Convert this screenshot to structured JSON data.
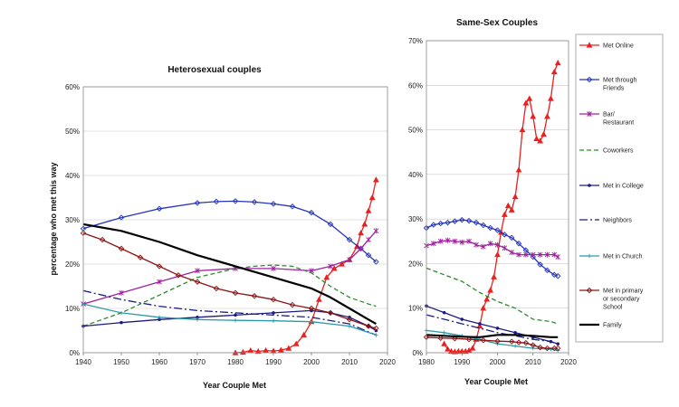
{
  "chart_data": [
    {
      "type": "line",
      "title": "Heterosexual couples",
      "xlabel": "Year Couple Met",
      "ylabel": "percentage who met this way",
      "xlim": [
        1940,
        2020
      ],
      "ylim": [
        0,
        60
      ],
      "xticks": [
        1940,
        1950,
        1960,
        1970,
        1980,
        1990,
        2000,
        2010,
        2020
      ],
      "yticks": [
        "0%",
        "10%",
        "20%",
        "30%",
        "40%",
        "50%",
        "60%"
      ],
      "series": [
        {
          "name": "Met Online",
          "color": "#e8201e",
          "marker": "triangle",
          "dash": "none",
          "x": [
            1980,
            1982,
            1984,
            1986,
            1988,
            1990,
            1992,
            1994,
            1996,
            1998,
            2000,
            2002,
            2004,
            2006,
            2008,
            2010,
            2012,
            2013,
            2014,
            2015,
            2016,
            2017
          ],
          "y": [
            0,
            0.1,
            0.5,
            0.3,
            0.5,
            0.4,
            0.6,
            1,
            2,
            4,
            7,
            12,
            17,
            19,
            20,
            21,
            24,
            27,
            29,
            32,
            35,
            39
          ]
        },
        {
          "name": "Met through Friends",
          "color": "#2434b8",
          "marker": "diamond",
          "dash": "none",
          "x": [
            1940,
            1950,
            1960,
            1970,
            1975,
            1980,
            1985,
            1990,
            1995,
            2000,
            2005,
            2010,
            2013,
            2015,
            2017
          ],
          "y": [
            28,
            30.5,
            32.5,
            33.8,
            34.1,
            34.2,
            34,
            33.6,
            33,
            31.6,
            29,
            25.5,
            23.5,
            22,
            20.5
          ]
        },
        {
          "name": "Bar/ Restaurant",
          "color": "#a020a0",
          "marker": "star",
          "dash": "none",
          "x": [
            1940,
            1950,
            1960,
            1970,
            1980,
            1990,
            2000,
            2005,
            2010,
            2013,
            2015,
            2017
          ],
          "y": [
            11,
            13.5,
            16,
            18.5,
            19,
            19,
            18.5,
            19.5,
            21,
            23.5,
            25.5,
            27.5
          ]
        },
        {
          "name": "Coworkers",
          "color": "#2e8a2e",
          "marker": "none",
          "dash": "5,3",
          "x": [
            1940,
            1950,
            1960,
            1970,
            1980,
            1985,
            1990,
            1995,
            2000,
            2005,
            2010,
            2015,
            2017
          ],
          "y": [
            6,
            9,
            13,
            17,
            19,
            19.5,
            19.8,
            19.5,
            18,
            15,
            12.5,
            11,
            10.5
          ]
        },
        {
          "name": "Met in College",
          "color": "#1c1c80",
          "marker": "dot",
          "dash": "none",
          "x": [
            1940,
            1950,
            1960,
            1970,
            1980,
            1990,
            2000,
            2005,
            2010,
            2015,
            2017
          ],
          "y": [
            6,
            6.8,
            7.5,
            8,
            8.5,
            9,
            9.5,
            9,
            8,
            6,
            5
          ]
        },
        {
          "name": "Neighbors",
          "color": "#1c1c80",
          "marker": "none",
          "dash": "9,3,2,3",
          "x": [
            1940,
            1950,
            1960,
            1970,
            1980,
            1990,
            2000,
            2010,
            2017
          ],
          "y": [
            14,
            12,
            10.5,
            9.5,
            9,
            8.5,
            8,
            6.5,
            4
          ]
        },
        {
          "name": "Met in Church",
          "color": "#2a9aa8",
          "marker": "plus",
          "dash": "none",
          "x": [
            1940,
            1950,
            1960,
            1970,
            1980,
            1990,
            2000,
            2010,
            2017
          ],
          "y": [
            11,
            9,
            8,
            7.5,
            7.3,
            7.2,
            7,
            6,
            4
          ]
        },
        {
          "name": "Met in primary or secondary School",
          "color": "#8b1414",
          "marker": "diamond",
          "dash": "none",
          "x": [
            1940,
            1945,
            1950,
            1955,
            1960,
            1965,
            1970,
            1975,
            1980,
            1985,
            1990,
            1995,
            2000,
            2005,
            2010,
            2015,
            2017
          ],
          "y": [
            27,
            25.5,
            23.5,
            21.5,
            19.5,
            17.5,
            16,
            14.5,
            13.5,
            12.8,
            12,
            10.8,
            10,
            9,
            7.5,
            6,
            5.5
          ]
        },
        {
          "name": "Family",
          "color": "#000000",
          "marker": "none",
          "dash": "none",
          "width": 2.2,
          "x": [
            1940,
            1950,
            1960,
            1970,
            1980,
            1990,
            2000,
            2005,
            2010,
            2015,
            2017
          ],
          "y": [
            29,
            27.5,
            25,
            22,
            19.5,
            17,
            14.5,
            12.5,
            10,
            7.5,
            6.5
          ]
        }
      ]
    },
    {
      "type": "line",
      "title": "Same-Sex Couples",
      "xlabel": "Year Couple Met",
      "ylabel": "",
      "xlim": [
        1980,
        2020
      ],
      "ylim": [
        0,
        70
      ],
      "xticks": [
        1980,
        1990,
        2000,
        2010,
        2020
      ],
      "yticks": [
        "0%",
        "10%",
        "20%",
        "30%",
        "40%",
        "50%",
        "60%",
        "70%"
      ],
      "series": [
        {
          "name": "Met Online",
          "color": "#e8201e",
          "marker": "triangle",
          "dash": "none",
          "x": [
            1985,
            1986,
            1987,
            1988,
            1989,
            1990,
            1991,
            1992,
            1993,
            1994,
            1995,
            1996,
            1997,
            1998,
            1999,
            2000,
            2001,
            2002,
            2003,
            2004,
            2005,
            2006,
            2007,
            2008,
            2009,
            2010,
            2011,
            2012,
            2013,
            2014,
            2015,
            2016,
            2017
          ],
          "y": [
            2,
            0.8,
            0.3,
            0.2,
            0.3,
            0.3,
            0.3,
            0.5,
            1,
            3,
            6,
            10,
            12,
            14,
            17,
            22,
            27,
            31,
            33,
            32,
            35,
            41,
            50,
            56,
            57,
            53,
            48,
            47.5,
            49,
            53,
            57,
            63,
            65
          ]
        },
        {
          "name": "Met through Friends",
          "color": "#2434b8",
          "marker": "diamond",
          "dash": "none",
          "x": [
            1980,
            1982,
            1984,
            1986,
            1988,
            1990,
            1992,
            1994,
            1996,
            1998,
            2000,
            2002,
            2004,
            2006,
            2008,
            2010,
            2012,
            2014,
            2016,
            2017
          ],
          "y": [
            28,
            28.7,
            29,
            29.2,
            29.5,
            29.8,
            29.6,
            29.2,
            28.6,
            28,
            27.5,
            26.5,
            25.8,
            24.5,
            23,
            21.5,
            19.8,
            18.5,
            17.5,
            17.2
          ]
        },
        {
          "name": "Bar/ Restaurant",
          "color": "#a020a0",
          "marker": "star",
          "dash": "none",
          "x": [
            1980,
            1982,
            1984,
            1986,
            1988,
            1990,
            1992,
            1994,
            1996,
            1998,
            2000,
            2002,
            2004,
            2006,
            2008,
            2010,
            2012,
            2014,
            2016,
            2017
          ],
          "y": [
            24,
            24.5,
            25,
            25.2,
            25,
            24.8,
            25,
            24.2,
            23.8,
            24.5,
            24.2,
            23.5,
            22.5,
            22,
            22,
            22,
            22,
            22,
            22,
            21.5
          ]
        },
        {
          "name": "Coworkers",
          "color": "#2e8a2e",
          "marker": "none",
          "dash": "5,3",
          "x": [
            1980,
            1985,
            1990,
            1995,
            2000,
            2005,
            2010,
            2015,
            2017
          ],
          "y": [
            19,
            17.5,
            16,
            13.5,
            11.5,
            10,
            7.5,
            7,
            6.5
          ]
        },
        {
          "name": "Met in College",
          "color": "#1c1c80",
          "marker": "dot",
          "dash": "none",
          "x": [
            1980,
            1985,
            1990,
            1995,
            2000,
            2005,
            2010,
            2015,
            2017
          ],
          "y": [
            10.5,
            9,
            7.5,
            6.5,
            5.5,
            4.5,
            3.5,
            2.5,
            2
          ]
        },
        {
          "name": "Neighbors",
          "color": "#1c1c80",
          "marker": "none",
          "dash": "9,3,2,3",
          "x": [
            1980,
            1985,
            1990,
            1995,
            2000,
            2005,
            2010,
            2015,
            2017
          ],
          "y": [
            8.5,
            7.5,
            6.5,
            5.5,
            4.5,
            3.8,
            3,
            2.5,
            2
          ]
        },
        {
          "name": "Met in Church",
          "color": "#2a9aa8",
          "marker": "plus",
          "dash": "none",
          "x": [
            1980,
            1985,
            1990,
            1995,
            2000,
            2005,
            2010,
            2015,
            2017
          ],
          "y": [
            5,
            4.5,
            3.8,
            3,
            2,
            1.5,
            1,
            0.8,
            0.5
          ]
        },
        {
          "name": "Met in primary or secondary School",
          "color": "#8b1414",
          "marker": "diamond",
          "dash": "none",
          "x": [
            1980,
            1984,
            1988,
            1992,
            1996,
            2000,
            2004,
            2006,
            2008,
            2010,
            2012,
            2014,
            2016,
            2017
          ],
          "y": [
            3.5,
            3.3,
            3.2,
            3,
            2.8,
            2.6,
            2.5,
            2.3,
            2.2,
            1.7,
            1.2,
            1,
            1,
            1
          ]
        },
        {
          "name": "Family",
          "color": "#000000",
          "marker": "none",
          "dash": "none",
          "width": 2.2,
          "x": [
            1980,
            1985,
            1990,
            1995,
            2000,
            2005,
            2010,
            2015,
            2017
          ],
          "y": [
            4,
            3.8,
            3.6,
            3.5,
            4,
            4,
            3.8,
            3.5,
            3.5
          ]
        }
      ]
    }
  ]
}
